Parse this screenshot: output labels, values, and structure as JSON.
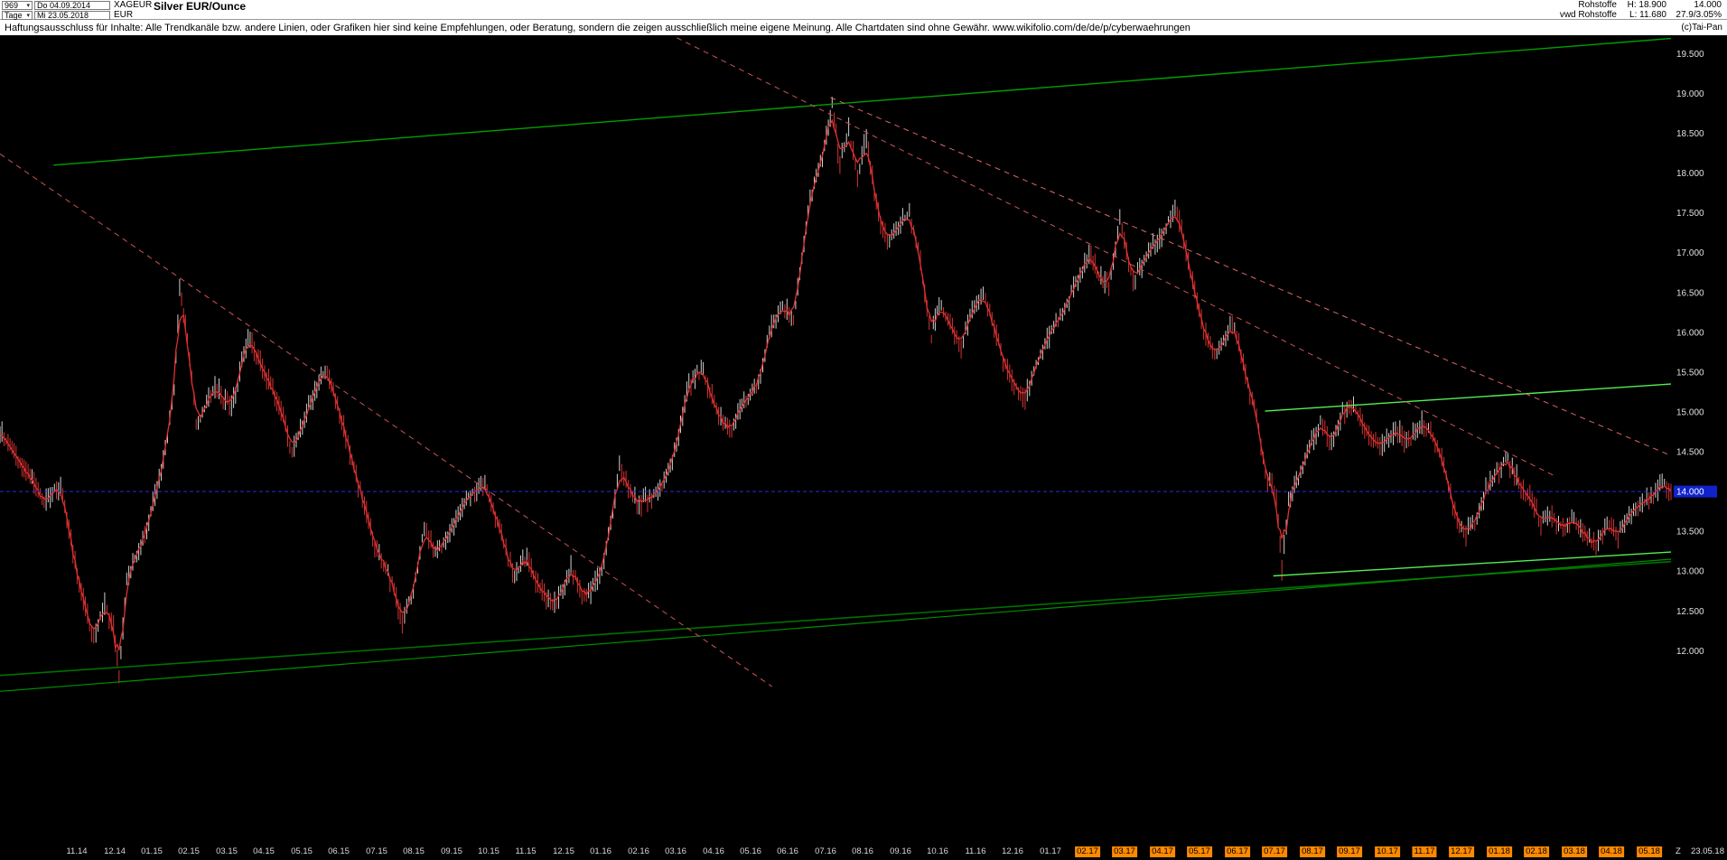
{
  "header": {
    "bars_count": "969",
    "start_date": "Do 04.09.2014",
    "symbol": "XAGEUR",
    "title": "Silver EUR/Ounce",
    "period": "Tage",
    "end_date": "Mi 23.05.2018",
    "currency": "EUR",
    "category": "Rohstoffe",
    "feed": "vwd Rohstoffe",
    "high_label": "H: 18.900",
    "low_label": "L: 11.680",
    "last_price": "14.000",
    "change_info": "27.9/3.05%"
  },
  "disclaimer": {
    "text": "Haftungsausschluss für Inhalte: Alle Trendkanäle bzw. andere Linien, oder Grafiken hier sind keine Empfehlungen, oder Beratung, sondern die zeigen ausschließlich meine eigene Meinung. Alle Chartdaten sind ohne Gewähr.  www.wikifolio.com/de/de/p/cyberwaehrungen",
    "copyright": "(c)Tai-Pan"
  },
  "footer": {
    "zoom_label": "Z",
    "last_date": "23.05.18"
  },
  "chart_data": {
    "type": "line",
    "title": "Silver EUR/Ounce",
    "instrument": "XAGEUR",
    "period_shown": "Do 04.09.2014 - Mi 23.05.2018",
    "bars": 969,
    "high": 18.9,
    "low": 11.68,
    "last": 14.0,
    "ylim": [
      9.6,
      19.72
    ],
    "grid": false,
    "y_axis": {
      "ticks": [
        "19.500",
        "19.000",
        "18.500",
        "18.000",
        "17.500",
        "17.000",
        "16.500",
        "16.000",
        "15.500",
        "15.000",
        "14.500",
        "14.000",
        "13.500",
        "13.000",
        "12.500",
        "12.000"
      ],
      "step": 0.5,
      "current_price": "14.000"
    },
    "x_axis": {
      "labels": [
        "11.14",
        "12.14",
        "01.15",
        "02.15",
        "03.15",
        "04.15",
        "05.15",
        "06.15",
        "07.15",
        "08.15",
        "09.15",
        "10.15",
        "11.15",
        "12.15",
        "01.16",
        "02.16",
        "03.16",
        "04.16",
        "05.16",
        "06.16",
        "07.16",
        "08.16",
        "09.16",
        "10.16",
        "11.16",
        "12.16",
        "01.17",
        "02.17",
        "03.17",
        "04.17",
        "05.17",
        "06.17",
        "07.17",
        "08.17",
        "09.17",
        "10.17",
        "11.17",
        "12.17",
        "01.18",
        "02.18",
        "03.18",
        "04.18",
        "05.18"
      ],
      "highlight_start_index": 27,
      "first_frac": 0.046,
      "step_frac": 0.0224
    },
    "series": {
      "name": "XAGEUR daily close (EUR per ounce), anchor points [time_unit, price]",
      "points": [
        [
          0,
          14.75
        ],
        [
          20,
          14.35
        ],
        [
          40,
          13.85
        ],
        [
          55,
          14.1
        ],
        [
          70,
          12.95
        ],
        [
          85,
          12.15
        ],
        [
          95,
          12.6
        ],
        [
          103,
          12.3
        ],
        [
          108,
          11.68
        ],
        [
          115,
          12.9
        ],
        [
          135,
          13.6
        ],
        [
          150,
          14.5
        ],
        [
          158,
          15.3
        ],
        [
          163,
          16.55
        ],
        [
          170,
          15.9
        ],
        [
          178,
          14.85
        ],
        [
          195,
          15.3
        ],
        [
          210,
          15.05
        ],
        [
          225,
          15.95
        ],
        [
          240,
          15.5
        ],
        [
          255,
          15.05
        ],
        [
          265,
          14.5
        ],
        [
          280,
          15.05
        ],
        [
          295,
          15.55
        ],
        [
          310,
          14.9
        ],
        [
          325,
          14.1
        ],
        [
          340,
          13.35
        ],
        [
          352,
          13.0
        ],
        [
          365,
          12.4
        ],
        [
          375,
          12.75
        ],
        [
          385,
          13.55
        ],
        [
          395,
          13.2
        ],
        [
          410,
          13.55
        ],
        [
          425,
          13.95
        ],
        [
          440,
          14.1
        ],
        [
          455,
          13.5
        ],
        [
          465,
          12.95
        ],
        [
          478,
          13.2
        ],
        [
          490,
          12.75
        ],
        [
          505,
          12.6
        ],
        [
          518,
          13.05
        ],
        [
          532,
          12.65
        ],
        [
          548,
          13.1
        ],
        [
          562,
          14.3
        ],
        [
          578,
          13.85
        ],
        [
          595,
          13.95
        ],
        [
          610,
          14.35
        ],
        [
          625,
          15.35
        ],
        [
          638,
          15.55
        ],
        [
          650,
          15.0
        ],
        [
          662,
          14.75
        ],
        [
          675,
          15.1
        ],
        [
          690,
          15.45
        ],
        [
          700,
          16.1
        ],
        [
          710,
          16.35
        ],
        [
          720,
          16.15
        ],
        [
          735,
          17.7
        ],
        [
          748,
          18.3
        ],
        [
          755,
          18.9
        ],
        [
          762,
          18.1
        ],
        [
          770,
          18.55
        ],
        [
          778,
          17.95
        ],
        [
          786,
          18.45
        ],
        [
          795,
          17.6
        ],
        [
          805,
          17.1
        ],
        [
          815,
          17.35
        ],
        [
          825,
          17.5
        ],
        [
          835,
          16.9
        ],
        [
          845,
          15.95
        ],
        [
          852,
          16.35
        ],
        [
          862,
          16.1
        ],
        [
          872,
          15.8
        ],
        [
          882,
          16.25
        ],
        [
          892,
          16.5
        ],
        [
          902,
          16.05
        ],
        [
          912,
          15.55
        ],
        [
          920,
          15.35
        ],
        [
          930,
          15.15
        ],
        [
          940,
          15.6
        ],
        [
          952,
          15.95
        ],
        [
          964,
          16.25
        ],
        [
          976,
          16.6
        ],
        [
          988,
          17.0
        ],
        [
          997,
          16.7
        ],
        [
          1006,
          16.55
        ],
        [
          1016,
          17.45
        ],
        [
          1028,
          16.65
        ],
        [
          1038,
          16.9
        ],
        [
          1048,
          17.1
        ],
        [
          1058,
          17.3
        ],
        [
          1066,
          17.55
        ],
        [
          1074,
          17.2
        ],
        [
          1082,
          16.6
        ],
        [
          1092,
          16.05
        ],
        [
          1102,
          15.7
        ],
        [
          1112,
          15.95
        ],
        [
          1120,
          16.1
        ],
        [
          1130,
          15.45
        ],
        [
          1140,
          15.0
        ],
        [
          1148,
          14.2
        ],
        [
          1158,
          13.95
        ],
        [
          1163,
          13.0
        ],
        [
          1169,
          13.9
        ],
        [
          1178,
          14.2
        ],
        [
          1188,
          14.55
        ],
        [
          1198,
          14.9
        ],
        [
          1208,
          14.6
        ],
        [
          1218,
          15.0
        ],
        [
          1228,
          15.1
        ],
        [
          1238,
          14.8
        ],
        [
          1248,
          14.6
        ],
        [
          1258,
          14.65
        ],
        [
          1268,
          14.75
        ],
        [
          1278,
          14.6
        ],
        [
          1288,
          14.85
        ],
        [
          1298,
          14.75
        ],
        [
          1308,
          14.45
        ],
        [
          1318,
          13.85
        ],
        [
          1328,
          13.45
        ],
        [
          1338,
          13.6
        ],
        [
          1348,
          14.0
        ],
        [
          1358,
          14.25
        ],
        [
          1368,
          14.4
        ],
        [
          1378,
          14.1
        ],
        [
          1388,
          13.95
        ],
        [
          1398,
          13.6
        ],
        [
          1408,
          13.7
        ],
        [
          1418,
          13.55
        ],
        [
          1428,
          13.65
        ],
        [
          1438,
          13.45
        ],
        [
          1448,
          13.35
        ],
        [
          1458,
          13.55
        ],
        [
          1468,
          13.45
        ],
        [
          1478,
          13.7
        ],
        [
          1488,
          13.85
        ],
        [
          1498,
          13.95
        ],
        [
          1508,
          14.1
        ],
        [
          1516,
          14.0
        ]
      ]
    },
    "trend_lines": [
      {
        "name": "upper-channel",
        "t1": 0.032,
        "p1": 18.1,
        "t2": 1.0,
        "p2": 19.69,
        "color": "#00a000",
        "dash": "none",
        "w": 1.4
      },
      {
        "name": "lower-support-a",
        "t1": 0.0,
        "p1": 11.69,
        "t2": 1.0,
        "p2": 13.12,
        "color": "#007000",
        "dash": "none",
        "w": 1.6
      },
      {
        "name": "lower-support-b",
        "t1": 0.0,
        "p1": 11.49,
        "t2": 1.0,
        "p2": 13.15,
        "color": "#009000",
        "dash": "none",
        "w": 1.2
      },
      {
        "name": "recent-resistance",
        "t1": 0.757,
        "p1": 15.01,
        "t2": 1.0,
        "p2": 15.35,
        "color": "#55ee55",
        "dash": "none",
        "w": 1.4
      },
      {
        "name": "recent-support",
        "t1": 0.762,
        "p1": 12.94,
        "t2": 1.0,
        "p2": 13.24,
        "color": "#55ee55",
        "dash": "none",
        "w": 1.4
      },
      {
        "name": "downtrend-left",
        "t1": 0.0,
        "p1": 18.24,
        "t2": 0.462,
        "p2": 11.55,
        "color": "#cc5555",
        "dash": "6 5",
        "w": 1
      },
      {
        "name": "downtrend-main",
        "t1": 0.405,
        "p1": 19.7,
        "t2": 0.93,
        "p2": 14.2,
        "color": "#cc5555",
        "dash": "6 5",
        "w": 1
      },
      {
        "name": "downtrend-from-peak",
        "t1": 0.497,
        "p1": 18.95,
        "t2": 1.0,
        "p2": 14.45,
        "color": "#dd6666",
        "dash": "6 5",
        "w": 1
      }
    ],
    "current_price_line": {
      "price": 14.0,
      "label": "14.000",
      "color": "#2a2ae0"
    },
    "colors": {
      "background": "#000000",
      "bar_up": "#cfcfcf",
      "bar_down": "#d83232",
      "signal_line": "#e03030",
      "trend_green": "#00a000",
      "trend_dark_green": "#007000",
      "trend_light_green": "#55ee55",
      "trend_red_dashed": "#cc5555",
      "price_chip_bg": "#1122cc",
      "axis_text": "#e0e0e0",
      "highlight_bg": "#ff8a00"
    }
  }
}
